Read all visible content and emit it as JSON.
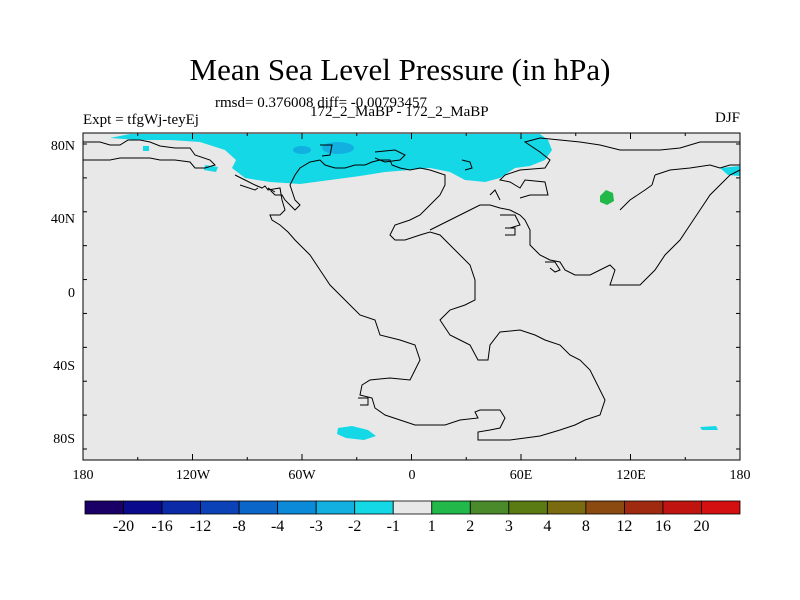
{
  "title": "Mean Sea Level Pressure (in hPa)",
  "stats": "rmsd= 0.376008 diff= -0.00793457",
  "expt_label": "Expt = tfgWj-teyEj",
  "comparison_label": "172_2_MaBP - 172_2_MaBP",
  "season_label": "DJF",
  "lat_ticks": [
    "80N",
    "40N",
    "0",
    "40S",
    "80S"
  ],
  "lon_ticks": [
    "180",
    "120W",
    "60W",
    "0",
    "60E",
    "120E",
    "180"
  ],
  "colorbar": {
    "labels": [
      "-20",
      "-16",
      "-12",
      "-8",
      "-4",
      "-3",
      "-2",
      "-1",
      "1",
      "2",
      "3",
      "4",
      "8",
      "12",
      "16",
      "20"
    ],
    "colors": [
      "#1a0066",
      "#0a0a8c",
      "#0b2aa8",
      "#0c42b8",
      "#0a66c8",
      "#0a8ad8",
      "#12b0e0",
      "#14d8e6",
      "#e8e8e8",
      "#22b84a",
      "#4a8a2a",
      "#5a7a14",
      "#7a6a10",
      "#8a4a10",
      "#a02a10",
      "#c01410",
      "#d41010"
    ]
  },
  "colors": {
    "ocean": "#e8e8e8",
    "low_anomaly": "#14d8e6",
    "lower_anomaly": "#12b0e0",
    "high_anomaly": "#22b84a",
    "coastline": "#000000"
  }
}
